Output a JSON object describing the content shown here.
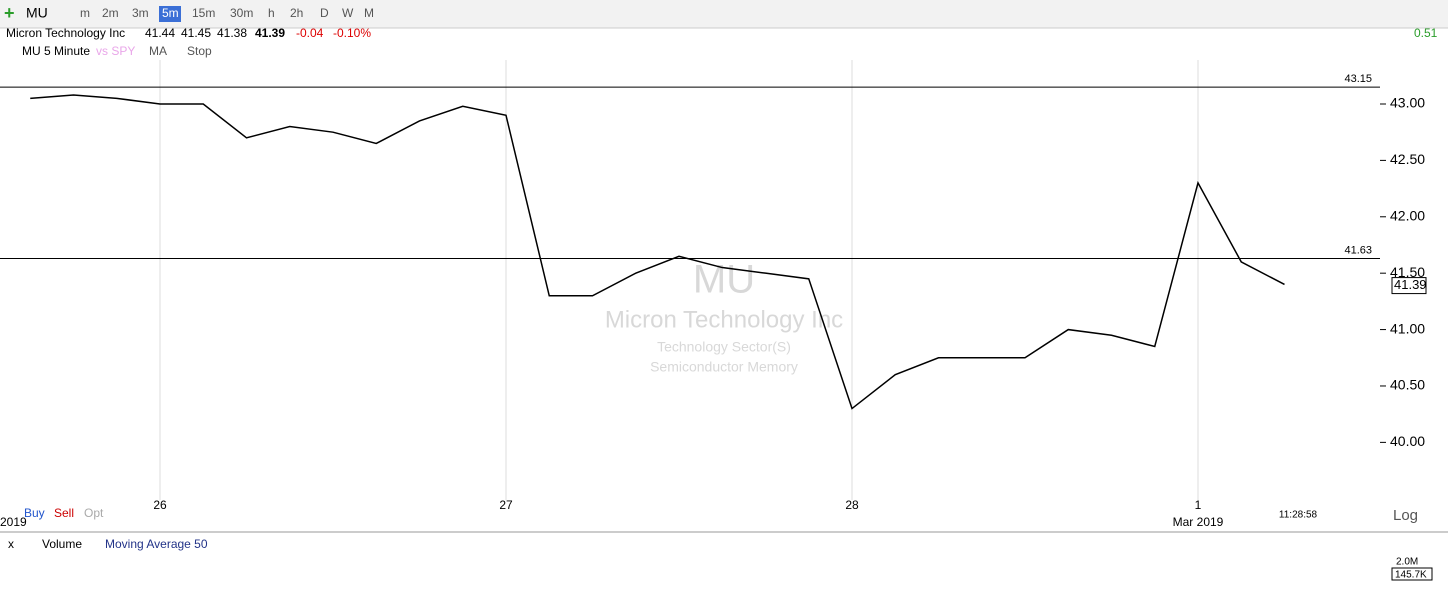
{
  "toolbar": {
    "symbol": "MU",
    "periods": [
      "m",
      "2m",
      "3m",
      "5m",
      "15m",
      "30m",
      "h",
      "2h",
      "D",
      "W",
      "M"
    ],
    "change_right": "0.51"
  },
  "quote": {
    "name": "Micron Technology Inc",
    "open": "41.44",
    "high": "41.45",
    "low": "41.38",
    "last": "41.39",
    "change": "-0.04",
    "change_pct": "-0.10%"
  },
  "chart_options": {
    "series": "MU 5 Minute",
    "compare": "vs SPY",
    "ma": "MA",
    "stop": "Stop"
  },
  "watermark": {
    "symbol": "MU",
    "name": "Micron Technology Inc",
    "sector": "Technology Sector(S)",
    "industry": "Semiconductor Memory"
  },
  "chart_data": {
    "type": "line",
    "color": "#000000",
    "categories": [
      null,
      null,
      null,
      "26",
      null,
      null,
      null,
      null,
      null,
      null,
      null,
      "27",
      null,
      null,
      null,
      null,
      null,
      null,
      null,
      "28",
      null,
      null,
      null,
      null,
      null,
      null,
      null,
      "1",
      null,
      null
    ],
    "values": [
      43.05,
      43.08,
      43.05,
      43.0,
      43.0,
      42.7,
      42.8,
      42.75,
      42.65,
      42.85,
      42.98,
      42.9,
      41.3,
      41.3,
      41.5,
      41.65,
      41.55,
      41.5,
      41.45,
      40.3,
      40.6,
      40.75,
      40.75,
      40.75,
      41.0,
      40.95,
      40.85,
      42.3,
      41.6,
      41.4
    ],
    "ylim": [
      39.56,
      43.39
    ],
    "yticks": [
      {
        "value": 40,
        "label": "40.00"
      },
      {
        "value": 40.5,
        "label": "40.50"
      },
      {
        "value": 41,
        "label": "41.00"
      },
      {
        "value": 41.5,
        "label": "41.50"
      },
      {
        "value": 42,
        "label": "42.00"
      },
      {
        "value": 42.5,
        "label": "42.50"
      },
      {
        "value": 43,
        "label": "43.00"
      }
    ],
    "hlines": [
      43.15,
      41.63
    ],
    "last_price": 41.39,
    "year_label": "2019",
    "month_label": "Mar 2019",
    "time_label": "11:28:58"
  },
  "footer": {
    "buy": "Buy",
    "sell": "Sell",
    "opt": "Opt",
    "scale": "Log"
  },
  "volume_pane": {
    "close": "x",
    "study": "Volume",
    "ma": "Moving Average 50",
    "top_label": "2.0M",
    "last_label": "145.7K"
  }
}
